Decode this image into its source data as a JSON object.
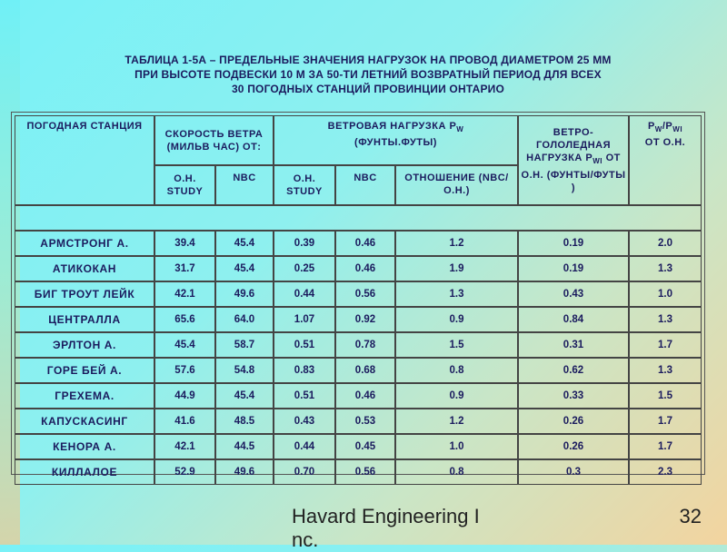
{
  "title": {
    "line1": "ТАБЛИЦА 1-5А – ПРЕДЕЛЬНЫЕ ЗНАЧЕНИЯ НАГРУЗОК НА ПРОВОД ДИАМЕТРОМ 25 ММ",
    "line2": "ПРИ ВЫСОТЕ ПОДВЕСКИ 10 М ЗА 50-ТИ ЛЕТНИЙ ВОЗВРАТНЫЙ ПЕРИОД ДЛЯ ВСЕХ",
    "line3": "30 ПОГОДНЫХ СТАНЦИЙ ПРОВИНЦИИ ОНТАРИО"
  },
  "table": {
    "headers": {
      "station": "ПОГОДНАЯ СТАНЦИЯ",
      "wind_speed": "СКОРОСТЬ ВЕТРА (МИЛЬВ ЧАС) ОТ:",
      "wind_load_main": "ВЕТРОВАЯ НАГРУЗКА P",
      "wind_load_sub": "W",
      "wind_load_units": "(ФУНТЫ.ФУТЫ)",
      "ice_line1": "ВЕТРО-ГОЛОЛЕДНАЯ НАГРУЗКА P",
      "ice_sub": "WI",
      "ice_line2": "ОТ О.Н. (ФУНТЫ/ФУТЫ )",
      "ratio_pw": "P",
      "ratio_pw_sub": "W",
      "ratio_slash": "/P",
      "ratio_pwi_sub": "WI",
      "ratio_from": "ОТ О.Н.",
      "on_study": "О.Н. STUDY",
      "nbc": "NBC",
      "on_study_2": "О.Н. STUDY",
      "nbc_2": "NBC",
      "ratio": "ОТНОШЕНИЕ (NBC/О.Н.)"
    },
    "rows": [
      {
        "station": "АРМСТРОНГ А.",
        "ws_on": "39.4",
        "ws_nbc": "45.4",
        "wl_on": "0.39",
        "wl_nbc": "0.46",
        "ratio": "1.2",
        "ice": "0.19",
        "pw_pwi": "2.0"
      },
      {
        "station": "АТИКОКАН",
        "ws_on": "31.7",
        "ws_nbc": "45.4",
        "wl_on": "0.25",
        "wl_nbc": "0.46",
        "ratio": "1.9",
        "ice": "0.19",
        "pw_pwi": "1.3"
      },
      {
        "station": "БИГ ТРОУТ ЛЕЙК",
        "ws_on": "42.1",
        "ws_nbc": "49.6",
        "wl_on": "0.44",
        "wl_nbc": "0.56",
        "ratio": "1.3",
        "ice": "0.43",
        "pw_pwi": "1.0"
      },
      {
        "station": "ЦЕНТРАЛЛА",
        "ws_on": "65.6",
        "ws_nbc": "64.0",
        "wl_on": "1.07",
        "wl_nbc": "0.92",
        "ratio": "0.9",
        "ice": "0.84",
        "pw_pwi": "1.3"
      },
      {
        "station": "ЭРЛТОН А.",
        "ws_on": "45.4",
        "ws_nbc": "58.7",
        "wl_on": "0.51",
        "wl_nbc": "0.78",
        "ratio": "1.5",
        "ice": "0.31",
        "pw_pwi": "1.7"
      },
      {
        "station": "ГОРЕ БЕЙ А.",
        "ws_on": "57.6",
        "ws_nbc": "54.8",
        "wl_on": "0.83",
        "wl_nbc": "0.68",
        "ratio": "0.8",
        "ice": "0.62",
        "pw_pwi": "1.3"
      },
      {
        "station": "ГРЕХЕМА.",
        "ws_on": "44.9",
        "ws_nbc": "45.4",
        "wl_on": "0.51",
        "wl_nbc": "0.46",
        "ratio": "0.9",
        "ice": "0.33",
        "pw_pwi": "1.5"
      },
      {
        "station": "КАПУСКАСИНГ",
        "ws_on": "41.6",
        "ws_nbc": "48.5",
        "wl_on": "0.43",
        "wl_nbc": "0.53",
        "ratio": "1.2",
        "ice": "0.26",
        "pw_pwi": "1.7"
      },
      {
        "station": "КЕНОРА А.",
        "ws_on": "42.1",
        "ws_nbc": "44.5",
        "wl_on": "0.44",
        "wl_nbc": "0.45",
        "ratio": "1.0",
        "ice": "0.26",
        "pw_pwi": "1.7"
      },
      {
        "station": "КИЛЛАЛОЕ",
        "ws_on": "52.9",
        "ws_nbc": "49.6",
        "wl_on": "0.70",
        "wl_nbc": "0.56",
        "ratio": "0.8",
        "ice": "0.3",
        "pw_pwi": "2.3"
      }
    ]
  },
  "footer": {
    "company_line1": "Havard Engineering I",
    "company_line2": "nc.",
    "page_number": "32"
  }
}
